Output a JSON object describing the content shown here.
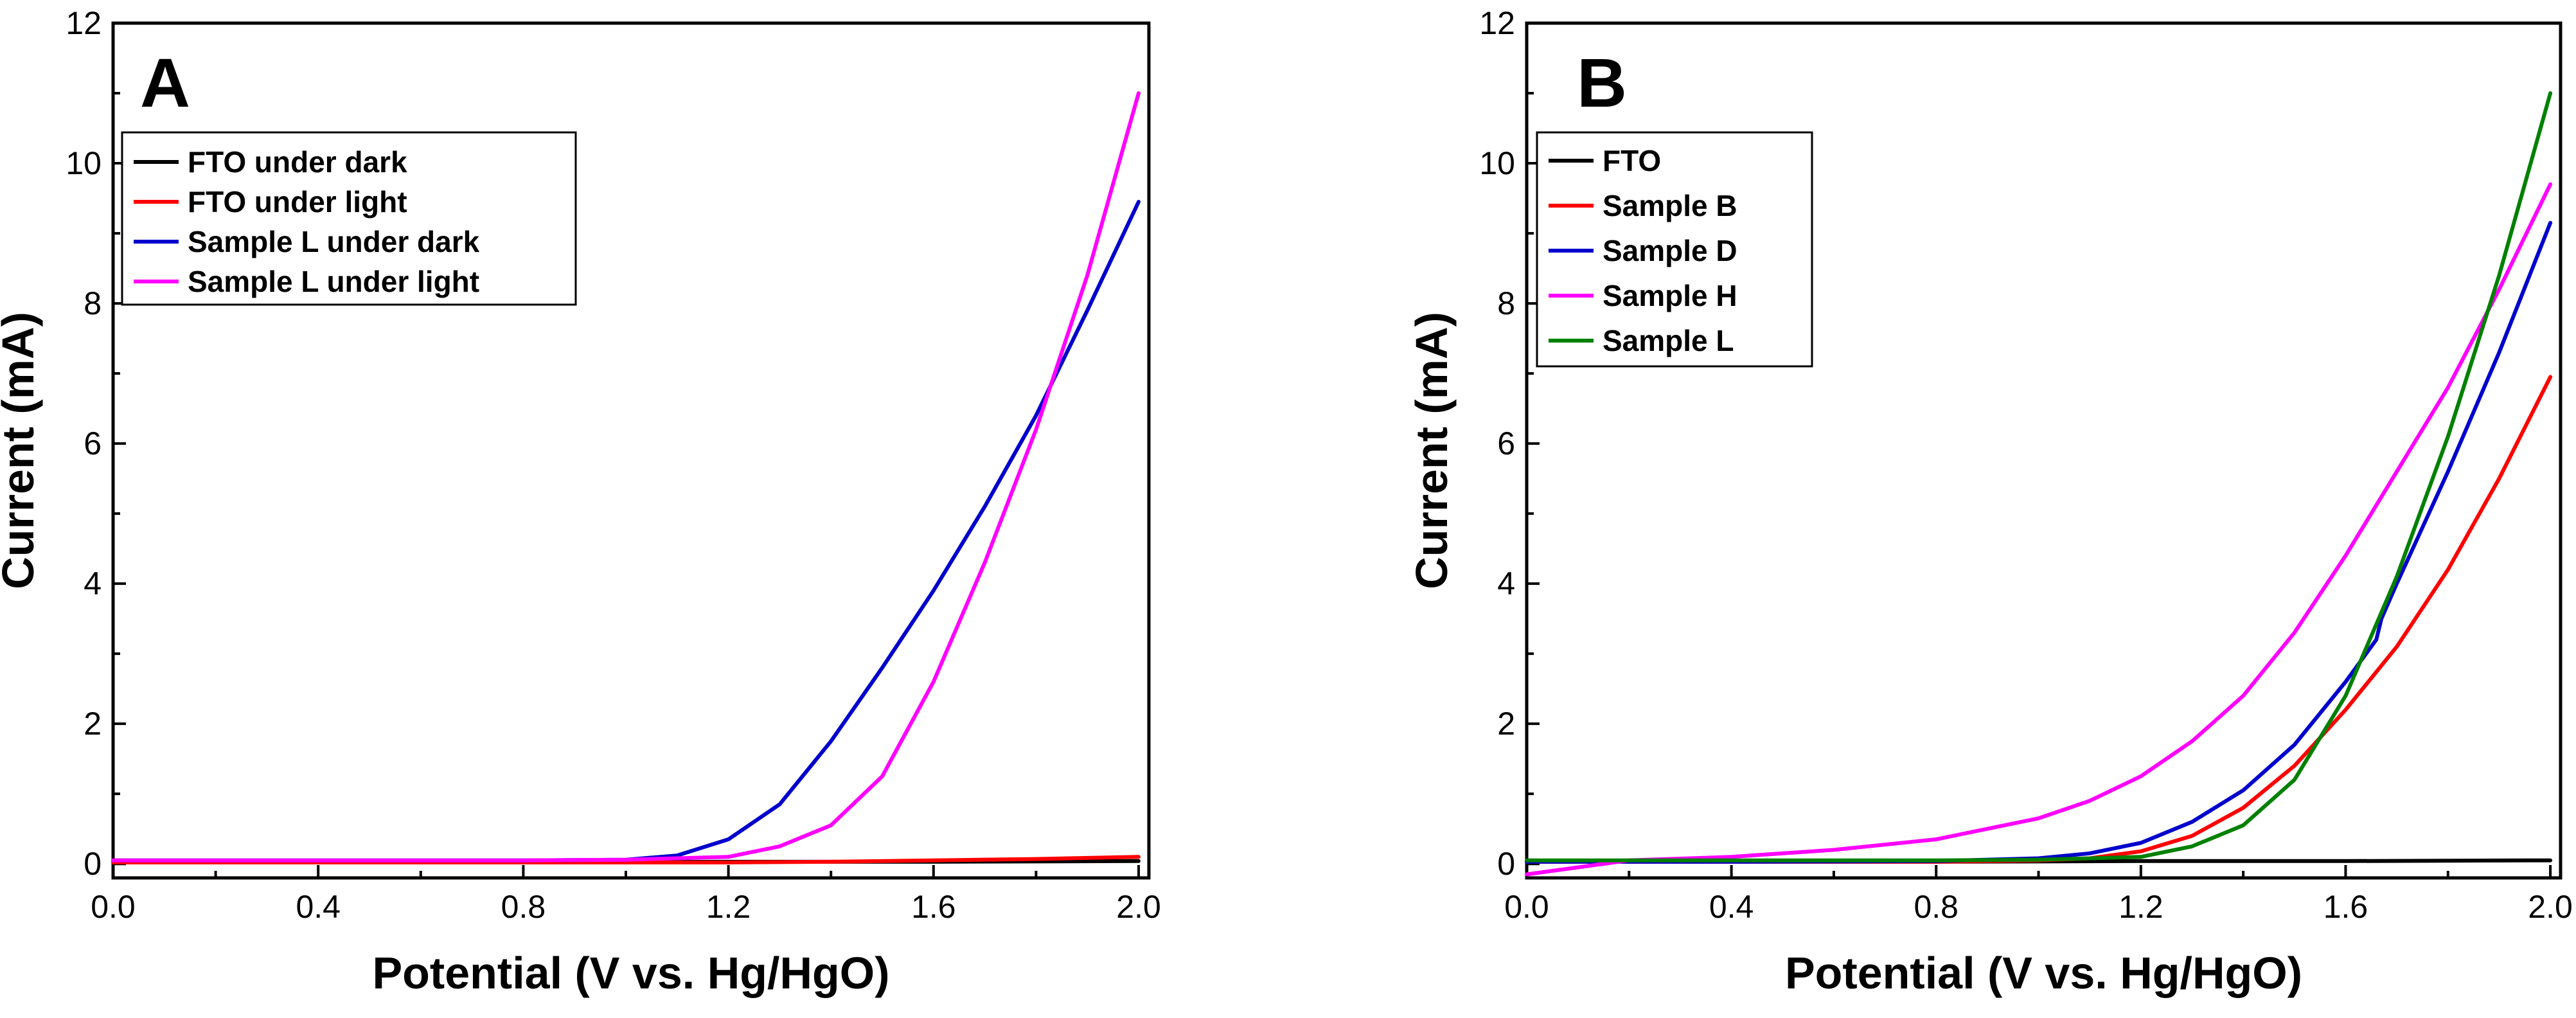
{
  "chart_data": [
    {
      "type": "line",
      "panel_label": "A",
      "xlabel": "Potential (V vs. Hg/HgO)",
      "ylabel": "Current (mA)",
      "xlim": [
        0,
        2.02
      ],
      "ylim": [
        -0.2,
        12
      ],
      "xticks": [
        0.0,
        0.4,
        0.8,
        1.2,
        1.6,
        2.0
      ],
      "xtick_labels": [
        "0.0",
        "0.4",
        "0.8",
        "1.2",
        "1.6",
        "2.0"
      ],
      "yticks": [
        0,
        2,
        4,
        6,
        8,
        10,
        12
      ],
      "ytick_labels": [
        "0",
        "2",
        "4",
        "6",
        "8",
        "10",
        "12"
      ],
      "legend_position": "top-left",
      "grid": false,
      "series": [
        {
          "name": "FTO under dark",
          "color": "#000000",
          "x": [
            0,
            0.4,
            0.8,
            1.2,
            1.6,
            2.0
          ],
          "y": [
            0.02,
            0.02,
            0.02,
            0.03,
            0.03,
            0.04
          ]
        },
        {
          "name": "FTO under light",
          "color": "#ff0000",
          "x": [
            0,
            0.4,
            0.8,
            1.0,
            1.2,
            1.4,
            1.6,
            1.8,
            2.0
          ],
          "y": [
            0.02,
            0.02,
            0.02,
            0.02,
            0.02,
            0.03,
            0.05,
            0.07,
            0.1
          ]
        },
        {
          "name": "Sample L under dark",
          "color": "#0000cc",
          "x": [
            0,
            0.4,
            0.8,
            1.0,
            1.1,
            1.2,
            1.3,
            1.4,
            1.5,
            1.6,
            1.7,
            1.8,
            1.9,
            2.0
          ],
          "y": [
            0.05,
            0.05,
            0.05,
            0.06,
            0.12,
            0.35,
            0.85,
            1.75,
            2.8,
            3.9,
            5.1,
            6.4,
            7.9,
            9.45
          ]
        },
        {
          "name": "Sample L under light",
          "color": "#ff00ff",
          "x": [
            0,
            0.4,
            0.8,
            1.0,
            1.2,
            1.3,
            1.4,
            1.5,
            1.6,
            1.7,
            1.8,
            1.9,
            2.0
          ],
          "y": [
            0.05,
            0.05,
            0.05,
            0.06,
            0.1,
            0.25,
            0.55,
            1.25,
            2.6,
            4.3,
            6.2,
            8.4,
            11.0
          ]
        }
      ]
    },
    {
      "type": "line",
      "panel_label": "B",
      "xlabel": "Potential (V vs. Hg/HgO)",
      "ylabel": "Current (mA)",
      "xlim": [
        0,
        2.02
      ],
      "ylim": [
        -0.2,
        12
      ],
      "xticks": [
        0.0,
        0.4,
        0.8,
        1.2,
        1.6,
        2.0
      ],
      "xtick_labels": [
        "0.0",
        "0.4",
        "0.8",
        "1.2",
        "1.6",
        "2.0"
      ],
      "yticks": [
        0,
        2,
        4,
        6,
        8,
        10,
        12
      ],
      "ytick_labels": [
        "0",
        "2",
        "4",
        "6",
        "8",
        "10",
        "12"
      ],
      "legend_position": "top-left",
      "grid": false,
      "series": [
        {
          "name": "FTO",
          "color": "#000000",
          "x": [
            0,
            0.4,
            0.8,
            1.2,
            1.6,
            2.0
          ],
          "y": [
            0.03,
            0.03,
            0.03,
            0.04,
            0.04,
            0.05
          ]
        },
        {
          "name": "Sample B",
          "color": "#ff0000",
          "x": [
            0,
            0.4,
            0.8,
            1.0,
            1.1,
            1.2,
            1.3,
            1.4,
            1.5,
            1.6,
            1.7,
            1.8,
            1.9,
            2.0
          ],
          "y": [
            0.03,
            0.03,
            0.03,
            0.05,
            0.08,
            0.18,
            0.4,
            0.8,
            1.4,
            2.2,
            3.1,
            4.2,
            5.5,
            6.95
          ]
        },
        {
          "name": "Sample D",
          "color": "#0000cc",
          "x": [
            0,
            0.4,
            0.8,
            1.0,
            1.1,
            1.2,
            1.3,
            1.4,
            1.5,
            1.6,
            1.66,
            1.67,
            1.7,
            1.8,
            1.9,
            2.0
          ],
          "y": [
            0.03,
            0.03,
            0.04,
            0.08,
            0.15,
            0.3,
            0.6,
            1.05,
            1.7,
            2.6,
            3.2,
            3.5,
            4.0,
            5.6,
            7.3,
            9.15
          ]
        },
        {
          "name": "Sample H",
          "color": "#ff00ff",
          "x": [
            0,
            0.2,
            0.4,
            0.6,
            0.8,
            1.0,
            1.1,
            1.2,
            1.3,
            1.4,
            1.5,
            1.6,
            1.7,
            1.8,
            1.9,
            2.0
          ],
          "y": [
            -0.15,
            0.05,
            0.1,
            0.2,
            0.35,
            0.65,
            0.9,
            1.25,
            1.75,
            2.4,
            3.3,
            4.4,
            5.6,
            6.8,
            8.2,
            9.7
          ]
        },
        {
          "name": "Sample L",
          "color": "#008000",
          "x": [
            0,
            0.4,
            0.8,
            1.0,
            1.2,
            1.3,
            1.4,
            1.5,
            1.6,
            1.7,
            1.8,
            1.9,
            2.0
          ],
          "y": [
            0.05,
            0.05,
            0.05,
            0.06,
            0.1,
            0.25,
            0.55,
            1.2,
            2.4,
            4.1,
            6.1,
            8.4,
            11.0
          ]
        }
      ]
    }
  ]
}
